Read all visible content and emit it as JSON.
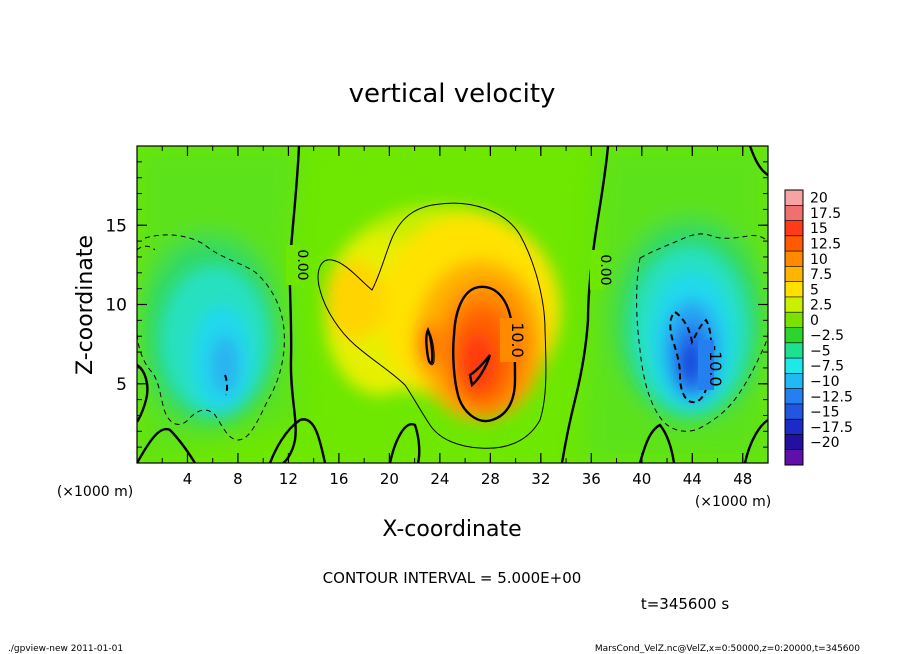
{
  "chart_data": {
    "type": "heatmap",
    "title": "vertical velocity",
    "xlabel": "X-coordinate",
    "ylabel": "Z-coordinate",
    "xunit_left": "(×1000 m)",
    "xunit_right": "(×1000 m)",
    "xlim": [
      0,
      50
    ],
    "ylim": [
      0,
      20
    ],
    "xticks": [
      4,
      8,
      12,
      16,
      20,
      24,
      28,
      32,
      36,
      40,
      44,
      48
    ],
    "yticks": [
      5,
      10,
      15
    ],
    "colorbar": {
      "labels": [
        "20",
        "17.5",
        "15",
        "12.5",
        "10",
        "7.5",
        "5",
        "2.5",
        "0",
        "−2.5",
        "−5",
        "−7.5",
        "−10",
        "−12.5",
        "−15",
        "−17.5",
        "−20"
      ],
      "colors": [
        "#f5a3a3",
        "#f07070",
        "#ff3b1a",
        "#ff5a00",
        "#ff8a00",
        "#ffb400",
        "#ffe000",
        "#c8f000",
        "#7de000",
        "#2ed42e",
        "#1fe090",
        "#1fe8e8",
        "#21b8f4",
        "#2480f0",
        "#2255e0",
        "#1c2ac8",
        "#2410a0",
        "#6010a8"
      ]
    },
    "features": [
      {
        "kind": "updraft",
        "center_x": 27,
        "center_z": 7.5,
        "peak": 15
      },
      {
        "kind": "downdraft",
        "center_x": 44,
        "center_z": 7,
        "peak": -12.5
      },
      {
        "kind": "downdraft",
        "center_x": 7,
        "center_z": 7,
        "peak": -5
      }
    ],
    "contour_labels": [
      {
        "text": "0.00",
        "x": 12.5,
        "z": 12.5
      },
      {
        "text": "10.0",
        "x": 29.3,
        "z": 7.5
      },
      {
        "text": "0.00",
        "x": 36.5,
        "z": 12.3
      },
      {
        "text": "-10.0",
        "x": 45.8,
        "z": 6.5
      }
    ]
  },
  "contour_interval": "CONTOUR INTERVAL = 5.000E+00",
  "time_label": "t=345600 s",
  "footer_left": "./gpview-new  2011-01-01",
  "footer_right": "MarsCond_VelZ.nc@VelZ,x=0:50000,z=0:20000,t=345600"
}
